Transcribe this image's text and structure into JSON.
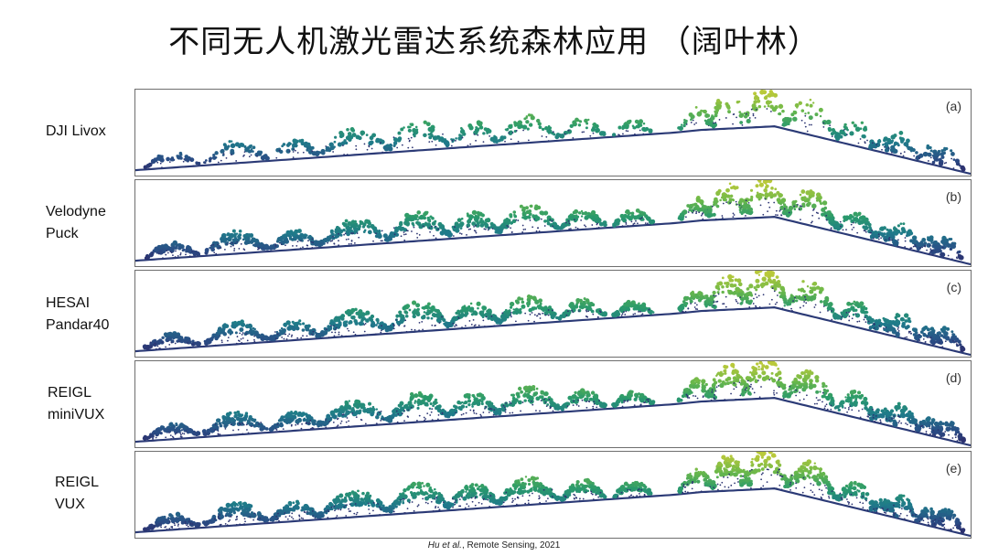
{
  "title": "不同无人机激光雷达系统森林应用 （阔叶林）",
  "panels": [
    {
      "id": "a",
      "label": "(a)",
      "system": "DJI Livox",
      "density": 0.45
    },
    {
      "id": "b",
      "label": "(b)",
      "system": "Velodyne Puck",
      "density": 0.85
    },
    {
      "id": "c",
      "label": "(c)",
      "system": "HESAI Pandar40",
      "density": 0.8
    },
    {
      "id": "d",
      "label": "(d)",
      "system": "REIGL miniVUX",
      "density": 0.85
    },
    {
      "id": "e",
      "label": "(e)",
      "system": "REIGL VUX",
      "density": 1.0
    }
  ],
  "row_labels": {
    "a": [
      "DJI Livox"
    ],
    "b": [
      "Velodyne",
      "Puck"
    ],
    "c": [
      "HESAI",
      "Pandar40"
    ],
    "d": [
      "REIGL",
      "miniVUX"
    ],
    "e": [
      "REIGL",
      "VUX"
    ]
  },
  "citation": {
    "authors": "Hu et al.",
    "rest": ", Remote Sensing,  2021"
  },
  "colormap": [
    "#2d1b5e",
    "#2a4e86",
    "#1f7a8a",
    "#2a9a6c",
    "#6bb84a",
    "#b9c93a"
  ]
}
